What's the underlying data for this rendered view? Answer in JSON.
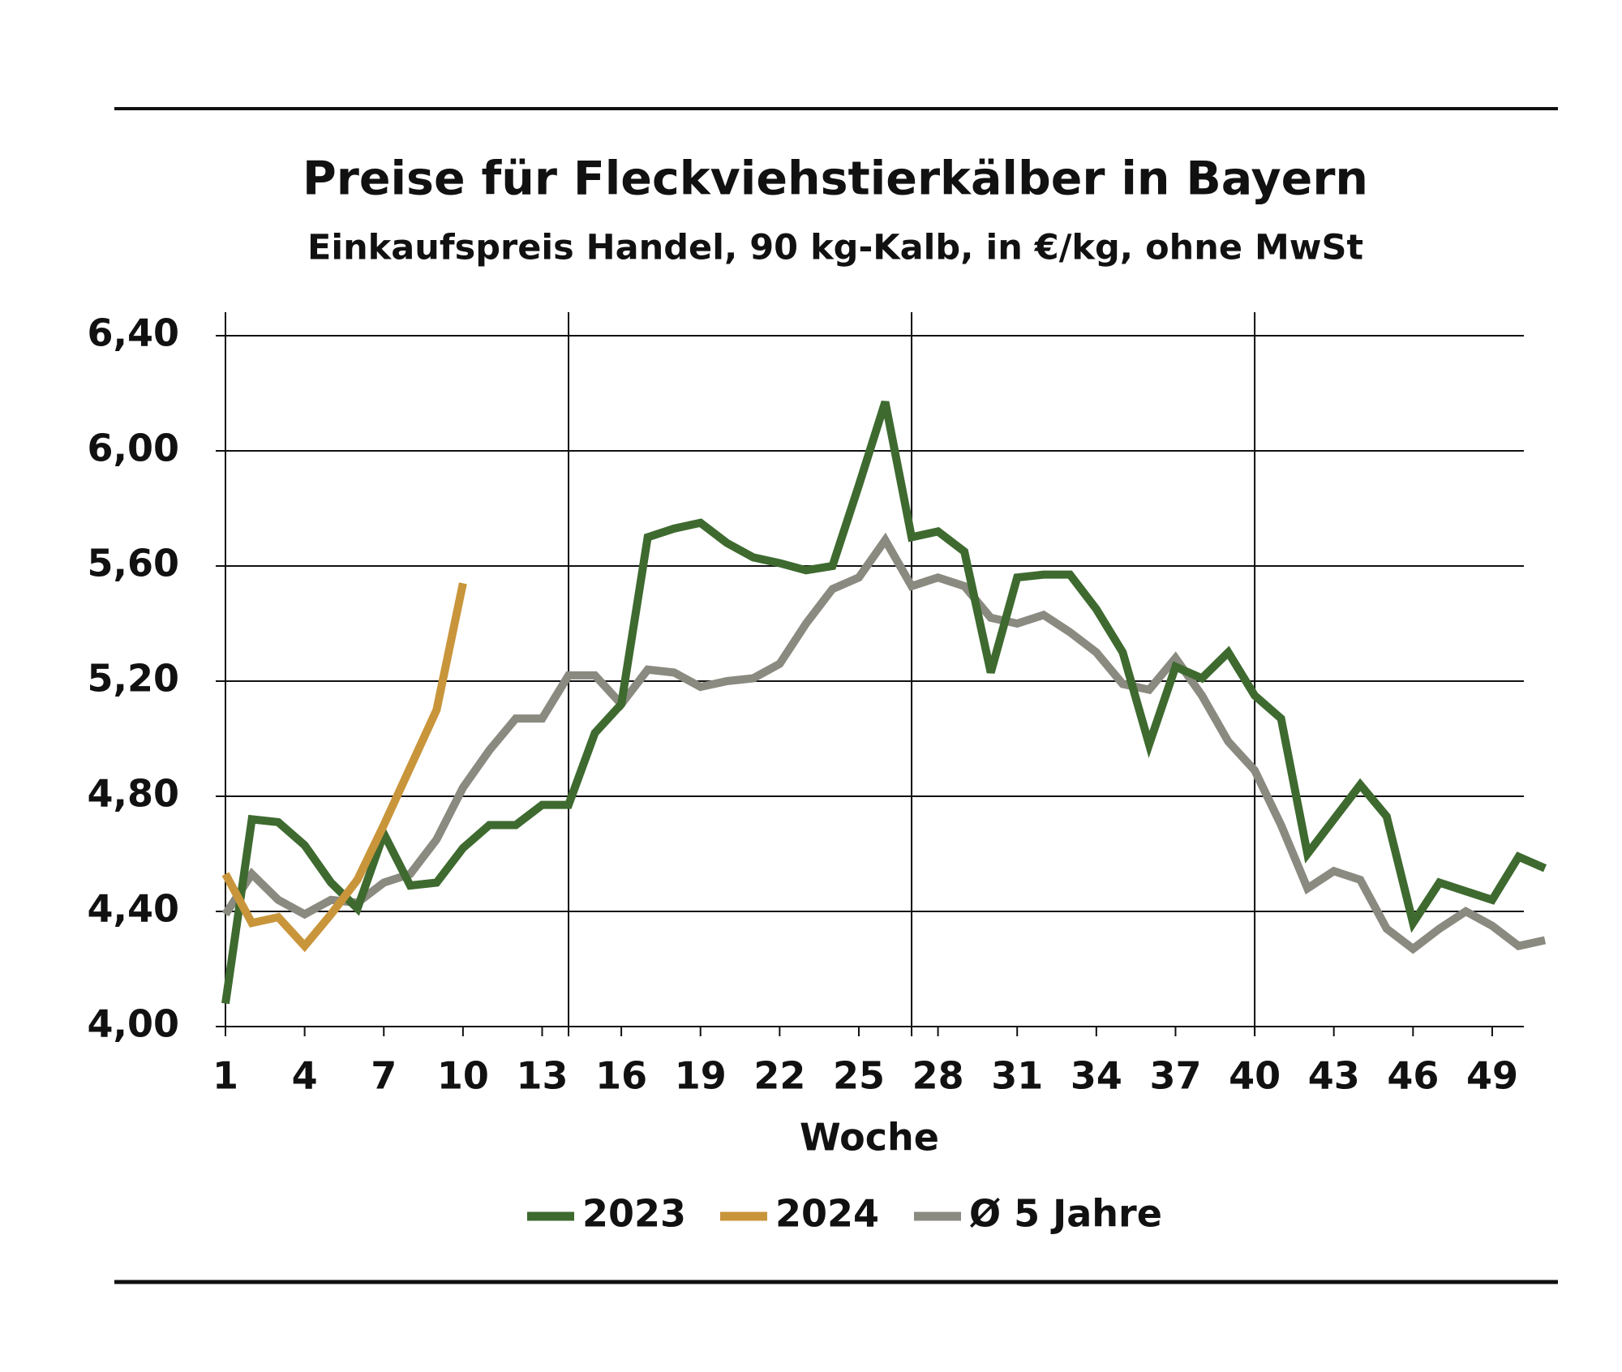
{
  "chart_data": {
    "type": "line",
    "title": "Preise für Fleckviehstierkälber in Bayern",
    "subtitle": "Einkaufspreis Handel, 90 kg-Kalb, in €/kg, ohne MwSt",
    "x_label": "Woche",
    "x": [
      1,
      2,
      3,
      4,
      5,
      6,
      7,
      8,
      9,
      10,
      11,
      12,
      13,
      14,
      15,
      16,
      17,
      18,
      19,
      20,
      21,
      22,
      23,
      24,
      25,
      26,
      27,
      28,
      29,
      30,
      31,
      32,
      33,
      34,
      35,
      36,
      37,
      38,
      39,
      40,
      41,
      42,
      43,
      44,
      45,
      46,
      47,
      48,
      49,
      50,
      51
    ],
    "xlim": [
      1,
      50.2
    ],
    "xticks": [
      1,
      4,
      7,
      10,
      13,
      16,
      19,
      22,
      25,
      28,
      31,
      34,
      37,
      40,
      43,
      46,
      49
    ],
    "vgrid": [
      14,
      27,
      40
    ],
    "ylim": [
      4.0,
      6.4
    ],
    "yticks": [
      {
        "value": 4.0,
        "label": "4,00"
      },
      {
        "value": 4.4,
        "label": "4,40"
      },
      {
        "value": 4.8,
        "label": "4,80"
      },
      {
        "value": 5.2,
        "label": "5,20"
      },
      {
        "value": 5.6,
        "label": "5,60"
      },
      {
        "value": 6.0,
        "label": "6,00"
      },
      {
        "value": 6.4,
        "label": "6,40"
      }
    ],
    "grid": true,
    "legend": "bottom",
    "series": [
      {
        "name": "2023",
        "color": "#3e6a2f",
        "values": [
          4.08,
          4.72,
          4.71,
          4.63,
          4.5,
          4.41,
          4.67,
          4.49,
          4.5,
          4.62,
          4.7,
          4.7,
          4.77,
          4.77,
          5.02,
          5.12,
          5.7,
          5.73,
          5.75,
          5.68,
          5.63,
          5.61,
          5.585,
          5.6,
          5.88,
          6.17,
          5.7,
          5.72,
          5.65,
          5.23,
          5.56,
          5.57,
          5.57,
          5.45,
          5.3,
          4.98,
          5.25,
          5.21,
          5.3,
          5.15,
          5.07,
          4.6,
          4.72,
          4.84,
          4.73,
          4.36,
          4.5,
          4.47,
          4.44,
          4.59,
          4.55
        ]
      },
      {
        "name": "2024",
        "color": "#c9953b",
        "values": [
          4.53,
          4.36,
          4.38,
          4.28,
          4.39,
          4.51,
          4.7,
          4.9,
          5.1,
          5.54,
          null,
          null,
          null,
          null,
          null,
          null,
          null,
          null,
          null,
          null,
          null,
          null,
          null,
          null,
          null,
          null,
          null,
          null,
          null,
          null,
          null,
          null,
          null,
          null,
          null,
          null,
          null,
          null,
          null,
          null,
          null,
          null,
          null,
          null,
          null,
          null,
          null,
          null,
          null,
          null,
          null
        ]
      },
      {
        "name": "Ø 5 Jahre",
        "color": "#8a8a80",
        "values": [
          4.39,
          4.53,
          4.44,
          4.39,
          4.44,
          4.43,
          4.5,
          4.53,
          4.65,
          4.83,
          4.96,
          5.07,
          5.07,
          5.22,
          5.22,
          5.12,
          5.24,
          5.23,
          5.18,
          5.2,
          5.21,
          5.26,
          5.4,
          5.52,
          5.56,
          5.69,
          5.53,
          5.56,
          5.53,
          5.42,
          5.4,
          5.43,
          5.37,
          5.3,
          5.19,
          5.17,
          5.28,
          5.15,
          4.99,
          4.89,
          4.7,
          4.48,
          4.54,
          4.51,
          4.34,
          4.27,
          4.34,
          4.4,
          4.35,
          4.28,
          4.3
        ]
      }
    ]
  }
}
